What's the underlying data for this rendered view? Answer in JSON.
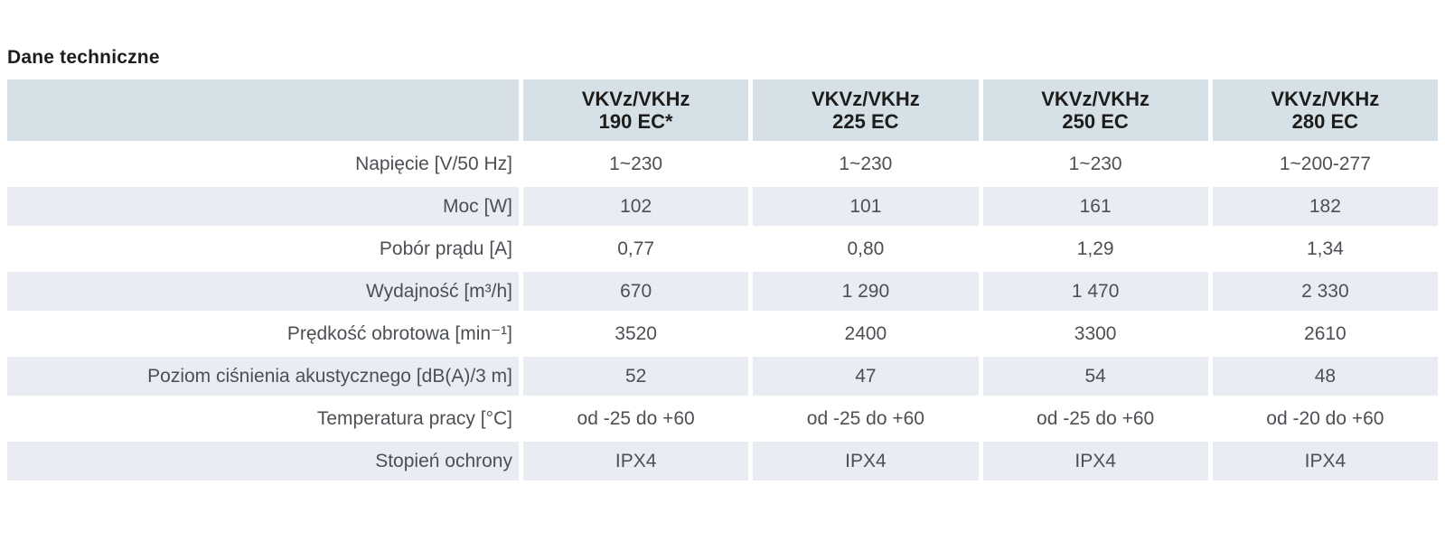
{
  "page": {
    "title": "Dane techniczne"
  },
  "colors": {
    "header_bg": "#d6e0e7",
    "alt_row_bg": "#e9edf3",
    "text_dark": "#1d1d1b",
    "text_gray": "#4c5055"
  },
  "table": {
    "columns": [
      {
        "line1": "VKVz/VKHz",
        "line2": "190 EC*"
      },
      {
        "line1": "VKVz/VKHz",
        "line2": "225 EC"
      },
      {
        "line1": "VKVz/VKHz",
        "line2": "250 EC"
      },
      {
        "line1": "VKVz/VKHz",
        "line2": "280 EC"
      }
    ],
    "rows": [
      {
        "label": "Napięcie [V/50 Hz]",
        "values": [
          "1~230",
          "1~230",
          "1~230",
          "1~200-277"
        ]
      },
      {
        "label": "Moc [W]",
        "values": [
          "102",
          "101",
          "161",
          "182"
        ]
      },
      {
        "label": "Pobór prądu [A]",
        "values": [
          "0,77",
          "0,80",
          "1,29",
          "1,34"
        ]
      },
      {
        "label": "Wydajność [m³/h]",
        "values": [
          "670",
          "1 290",
          "1 470",
          "2 330"
        ]
      },
      {
        "label": "Prędkość obrotowa [min⁻¹]",
        "values": [
          "3520",
          "2400",
          "3300",
          "2610"
        ]
      },
      {
        "label": "Poziom ciśnienia akustycznego [dB(A)/3 m]",
        "values": [
          "52",
          "47",
          "54",
          "48"
        ]
      },
      {
        "label": "Temperatura pracy [°C]",
        "values": [
          "od -25 do +60",
          "od -25 do +60",
          "od -25 do +60",
          "od -20 do +60"
        ]
      },
      {
        "label": "Stopień ochrony",
        "values": [
          "IPX4",
          "IPX4",
          "IPX4",
          "IPX4"
        ]
      }
    ]
  }
}
